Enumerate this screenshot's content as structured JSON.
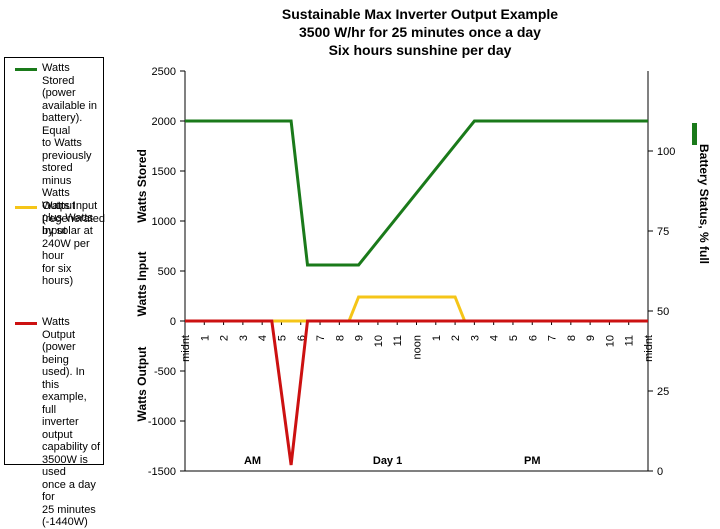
{
  "chart_data": {
    "type": "line",
    "title": [
      "Sustainable Max Inverter Output Example",
      "3500 W/hr for 25 minutes once a day",
      "Six hours sunshine per day"
    ],
    "ylabel_segments": [
      "Watts Stored",
      "Watts Input",
      "Watts Output"
    ],
    "y2label": "Battery Status, % full",
    "ylim": [
      -1500,
      2500
    ],
    "y_ticks": [
      -1500,
      -1000,
      -500,
      0,
      500,
      1000,
      1500,
      2000,
      2500
    ],
    "y_tick_labels": [
      "-1500",
      "-1000",
      "-500",
      "0",
      "500",
      "1000",
      "1500",
      "2000",
      "2500"
    ],
    "y2lim": [
      0,
      125
    ],
    "y2_ticks": [
      0,
      25,
      50,
      75,
      100
    ],
    "y2_tick_labels": [
      "0",
      "25",
      "50",
      "75",
      "100"
    ],
    "x_hours": [
      0,
      24
    ],
    "x_tick_labels": [
      "midnt",
      "1",
      "2",
      "3",
      "4",
      "5",
      "6",
      "7",
      "8",
      "9",
      "10",
      "11",
      "noon",
      "1",
      "2",
      "3",
      "4",
      "5",
      "6",
      "7",
      "8",
      "9",
      "10",
      "11",
      "midnt"
    ],
    "period_labels": [
      {
        "text": "AM",
        "hour": 3.5
      },
      {
        "text": "Day 1",
        "hour": 10.5
      },
      {
        "text": "PM",
        "hour": 18
      }
    ],
    "grid": false,
    "legend_position": "left",
    "series": [
      {
        "name": "Watts Stored",
        "color": "#1a7a1a",
        "x": [
          0,
          5.5,
          6.35,
          9,
          15,
          24
        ],
        "y": [
          2000,
          2000,
          560,
          560,
          2000,
          2000
        ]
      },
      {
        "name": "Watts Input",
        "color": "#f5c518",
        "x": [
          0,
          8.5,
          9,
          14,
          14.5,
          24
        ],
        "y": [
          0,
          0,
          240,
          240,
          0,
          0
        ]
      },
      {
        "name": "Watts Output",
        "color": "#cc1111",
        "x": [
          0,
          4.5,
          5.5,
          6.35,
          24
        ],
        "y": [
          0,
          0,
          -1440,
          0,
          0
        ]
      }
    ]
  },
  "legend": [
    {
      "label": "Watts Stored\n(power\navailable in\nbattery). Equal\nto Watts\npreviously\nstored minus\nWatts Output\nplus Watts\nInput",
      "color": "#1a7a1a"
    },
    {
      "label": "Watts Input\n(regenerated\nby solar at\n240W per hour\nfor six hours)",
      "color": "#f5c518"
    },
    {
      "label": "Watts Output\n(power being\nused).  In this\nexample, full\ninverter output\ncapability of\n3500W is used\nonce a day for\n25 minutes\n(-1440W)",
      "color": "#cc1111"
    }
  ]
}
